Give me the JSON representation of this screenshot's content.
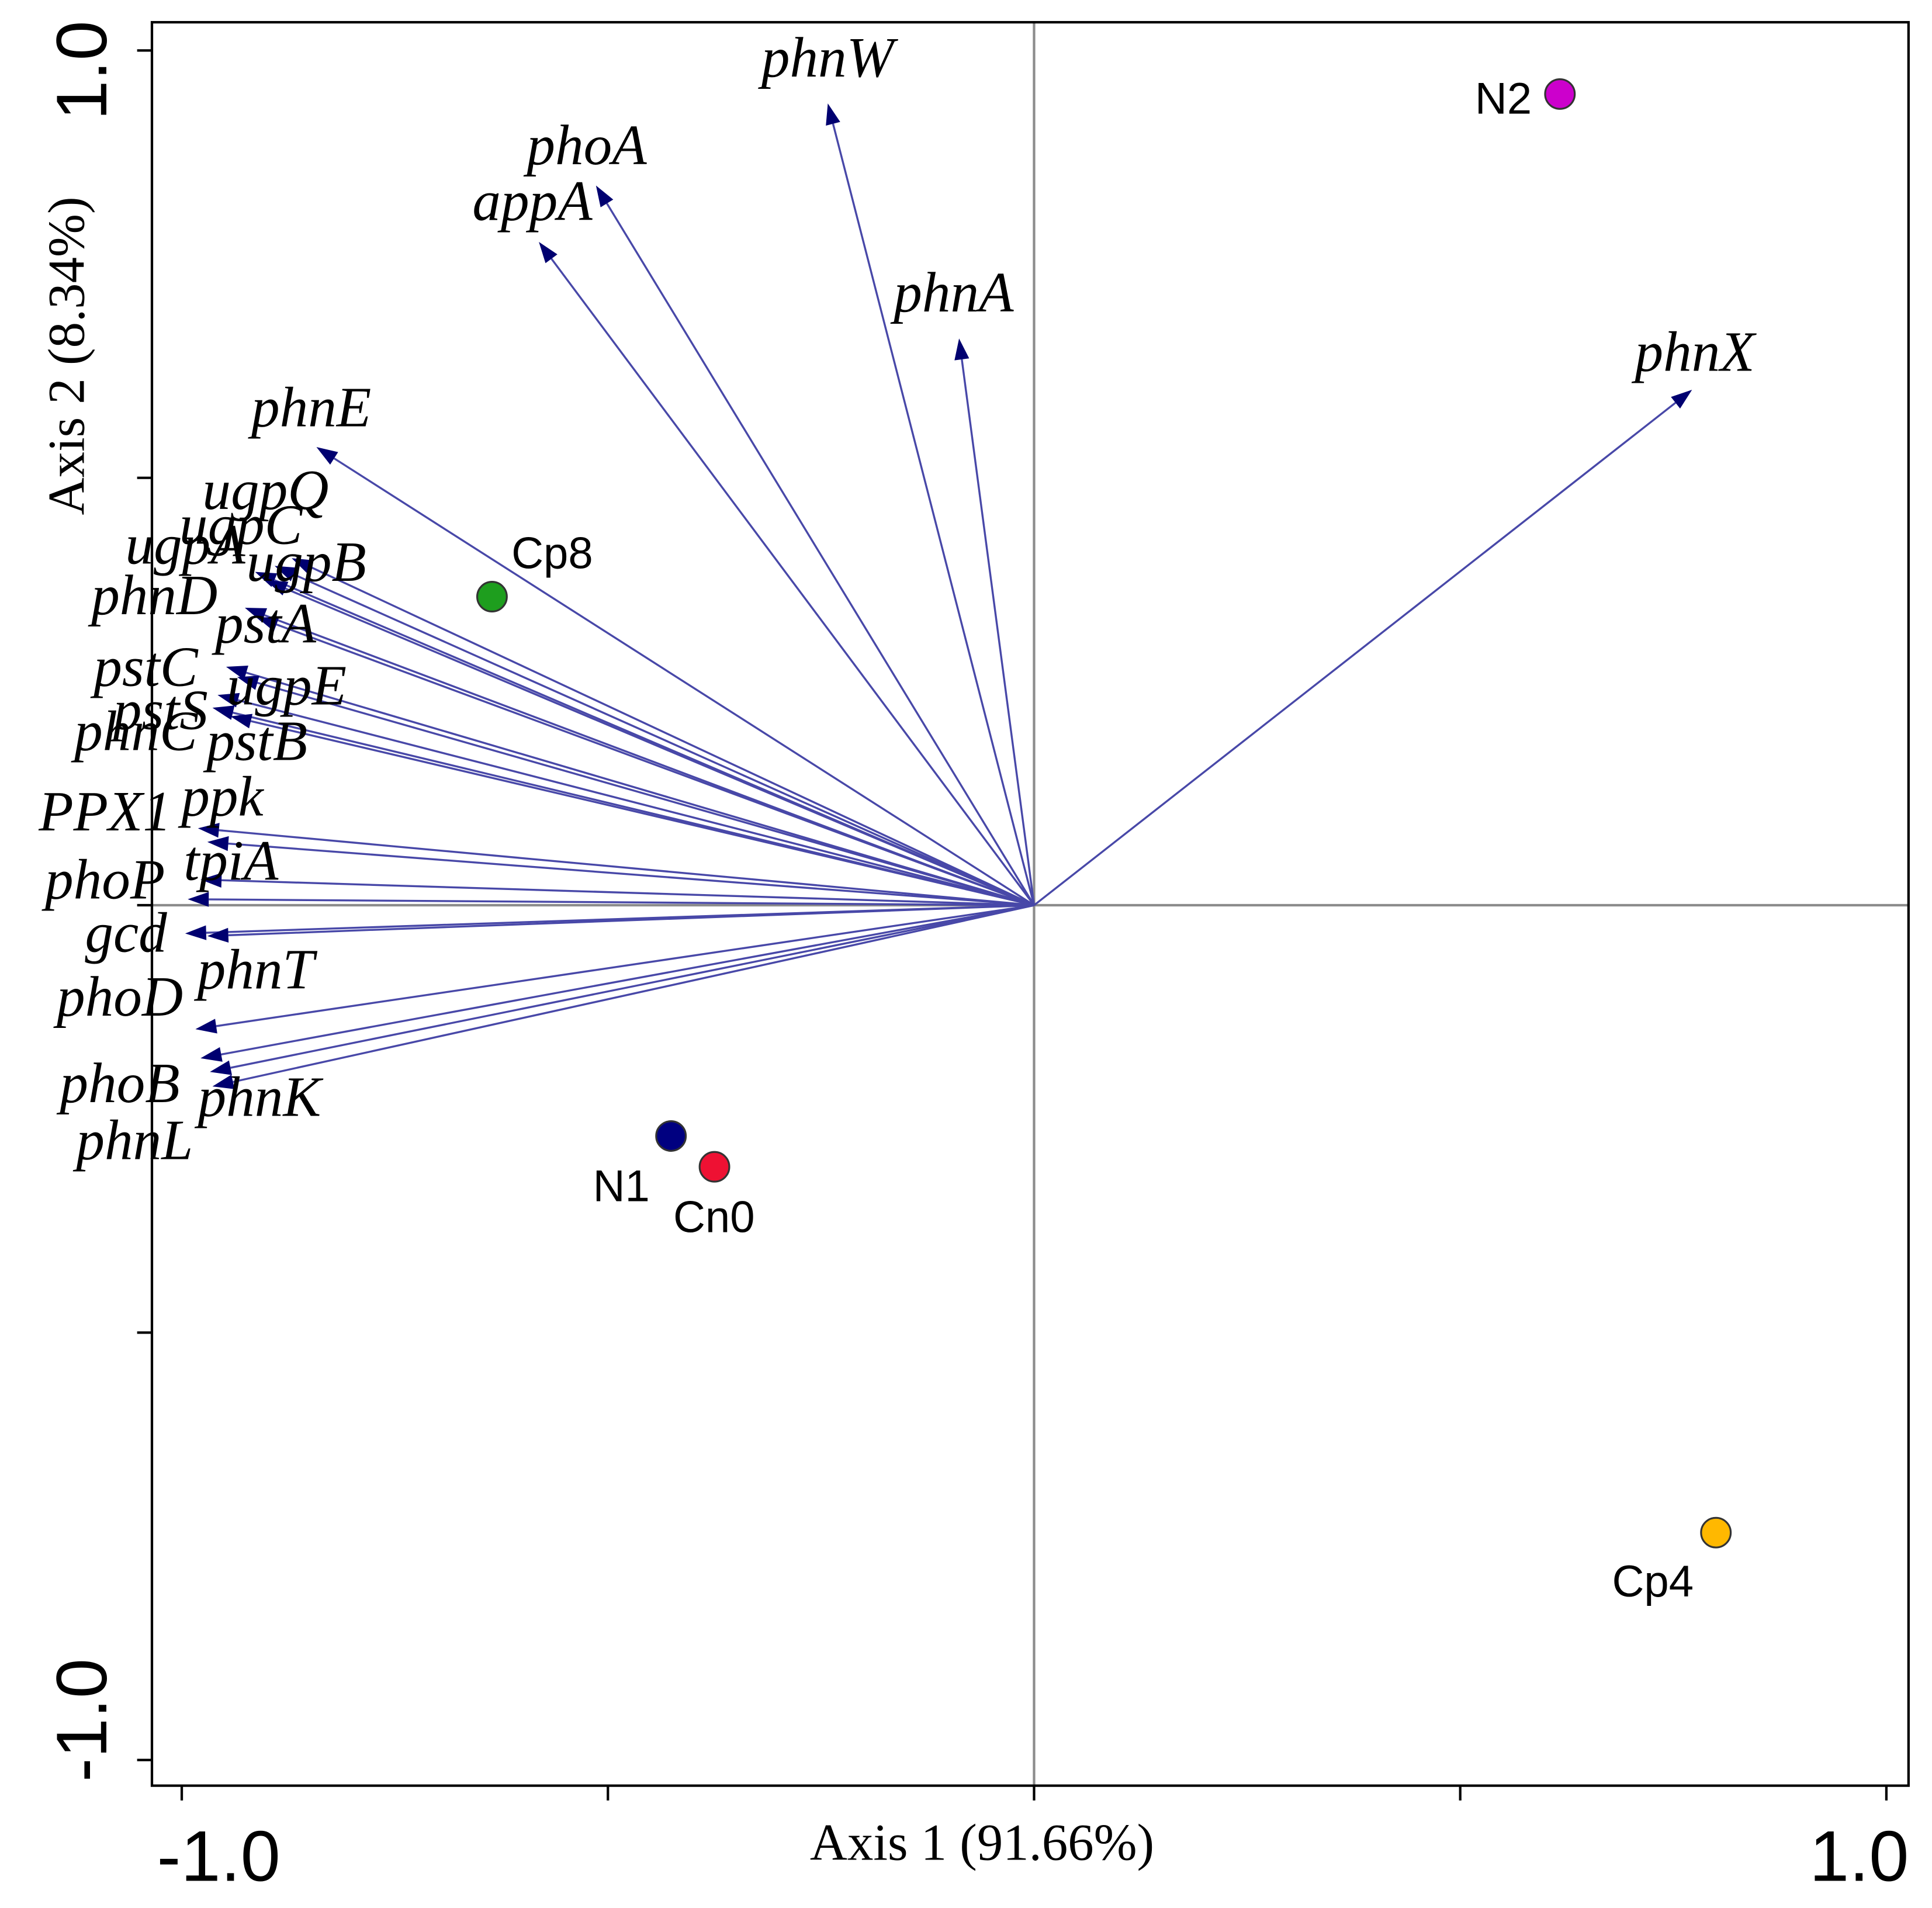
{
  "chart_data": {
    "type": "scatter",
    "title": "",
    "xlabel": "Axis 1 (91.66%)",
    "ylabel": "Axis 2 (8.34%)",
    "xlim": [
      -1.035,
      1.026
    ],
    "ylim": [
      -1.03,
      1.033
    ],
    "x_ticks": [
      -1.0,
      -0.5,
      0.0,
      0.5,
      1.0
    ],
    "y_ticks": [
      -1.0,
      -0.5,
      0.0,
      0.5,
      1.0
    ],
    "x_tick_labels": [
      "-1.0",
      "1.0"
    ],
    "y_tick_labels": [
      "1.0",
      "-1.0"
    ],
    "grid": false,
    "reference_lines": {
      "x": 0,
      "y": 0
    },
    "points": [
      {
        "name": "N2",
        "x": 0.617,
        "y": 0.949,
        "color": "#CC00CC"
      },
      {
        "name": "Cp8",
        "x": -0.636,
        "y": 0.361,
        "color": "#1E9E1E"
      },
      {
        "name": "N1",
        "x": -0.426,
        "y": -0.27,
        "color": "#000080"
      },
      {
        "name": "Cn0",
        "x": -0.375,
        "y": -0.306,
        "color": "#EE1133"
      },
      {
        "name": "Cp4",
        "x": 0.8,
        "y": -0.734,
        "color": "#FFB800"
      }
    ],
    "vectors": [
      {
        "name": "phnW",
        "x": -0.242,
        "y": 0.938
      },
      {
        "name": "phoA",
        "x": -0.514,
        "y": 0.842
      },
      {
        "name": "appA",
        "x": -0.581,
        "y": 0.776
      },
      {
        "name": "phnA",
        "x": -0.088,
        "y": 0.663
      },
      {
        "name": "phnX",
        "x": 0.772,
        "y": 0.603
      },
      {
        "name": "phnE",
        "x": -0.842,
        "y": 0.536
      },
      {
        "name": "ugpQ",
        "x": -0.871,
        "y": 0.406
      },
      {
        "name": "ugpC",
        "x": -0.891,
        "y": 0.397
      },
      {
        "name": "ugpA",
        "x": -0.914,
        "y": 0.39
      },
      {
        "name": "ugpB",
        "x": -0.901,
        "y": 0.38
      },
      {
        "name": "phnD",
        "x": -0.926,
        "y": 0.348
      },
      {
        "name": "pstA",
        "x": -0.912,
        "y": 0.337
      },
      {
        "name": "pstC",
        "x": -0.948,
        "y": 0.279
      },
      {
        "name": "ugpE",
        "x": -0.935,
        "y": 0.267
      },
      {
        "name": "pstS",
        "x": -0.958,
        "y": 0.246
      },
      {
        "name": "phnC",
        "x": -0.964,
        "y": 0.231
      },
      {
        "name": "pstB",
        "x": -0.943,
        "y": 0.221
      },
      {
        "name": "PPX1",
        "x": -0.981,
        "y": 0.09
      },
      {
        "name": "ppk",
        "x": -0.97,
        "y": 0.074
      },
      {
        "name": "phoP",
        "x": -0.993,
        "y": 0.007
      },
      {
        "name": "tpiA",
        "x": -0.978,
        "y": 0.03
      },
      {
        "name": "gcd",
        "x": -0.996,
        "y": -0.033
      },
      {
        "name": "phnT",
        "x": -0.97,
        "y": -0.036
      },
      {
        "name": "phoD",
        "x": -0.984,
        "y": -0.145
      },
      {
        "name": "phoB",
        "x": -0.978,
        "y": -0.179
      },
      {
        "name": "phnK",
        "x": -0.967,
        "y": -0.195
      },
      {
        "name": "phnL",
        "x": -0.964,
        "y": -0.212
      }
    ],
    "colors": {
      "vector_line": "#4848A8",
      "arrowhead": "#000070",
      "reference_line": "#8C8C8C",
      "frame": "#000000",
      "point_outline": "#333333"
    }
  }
}
